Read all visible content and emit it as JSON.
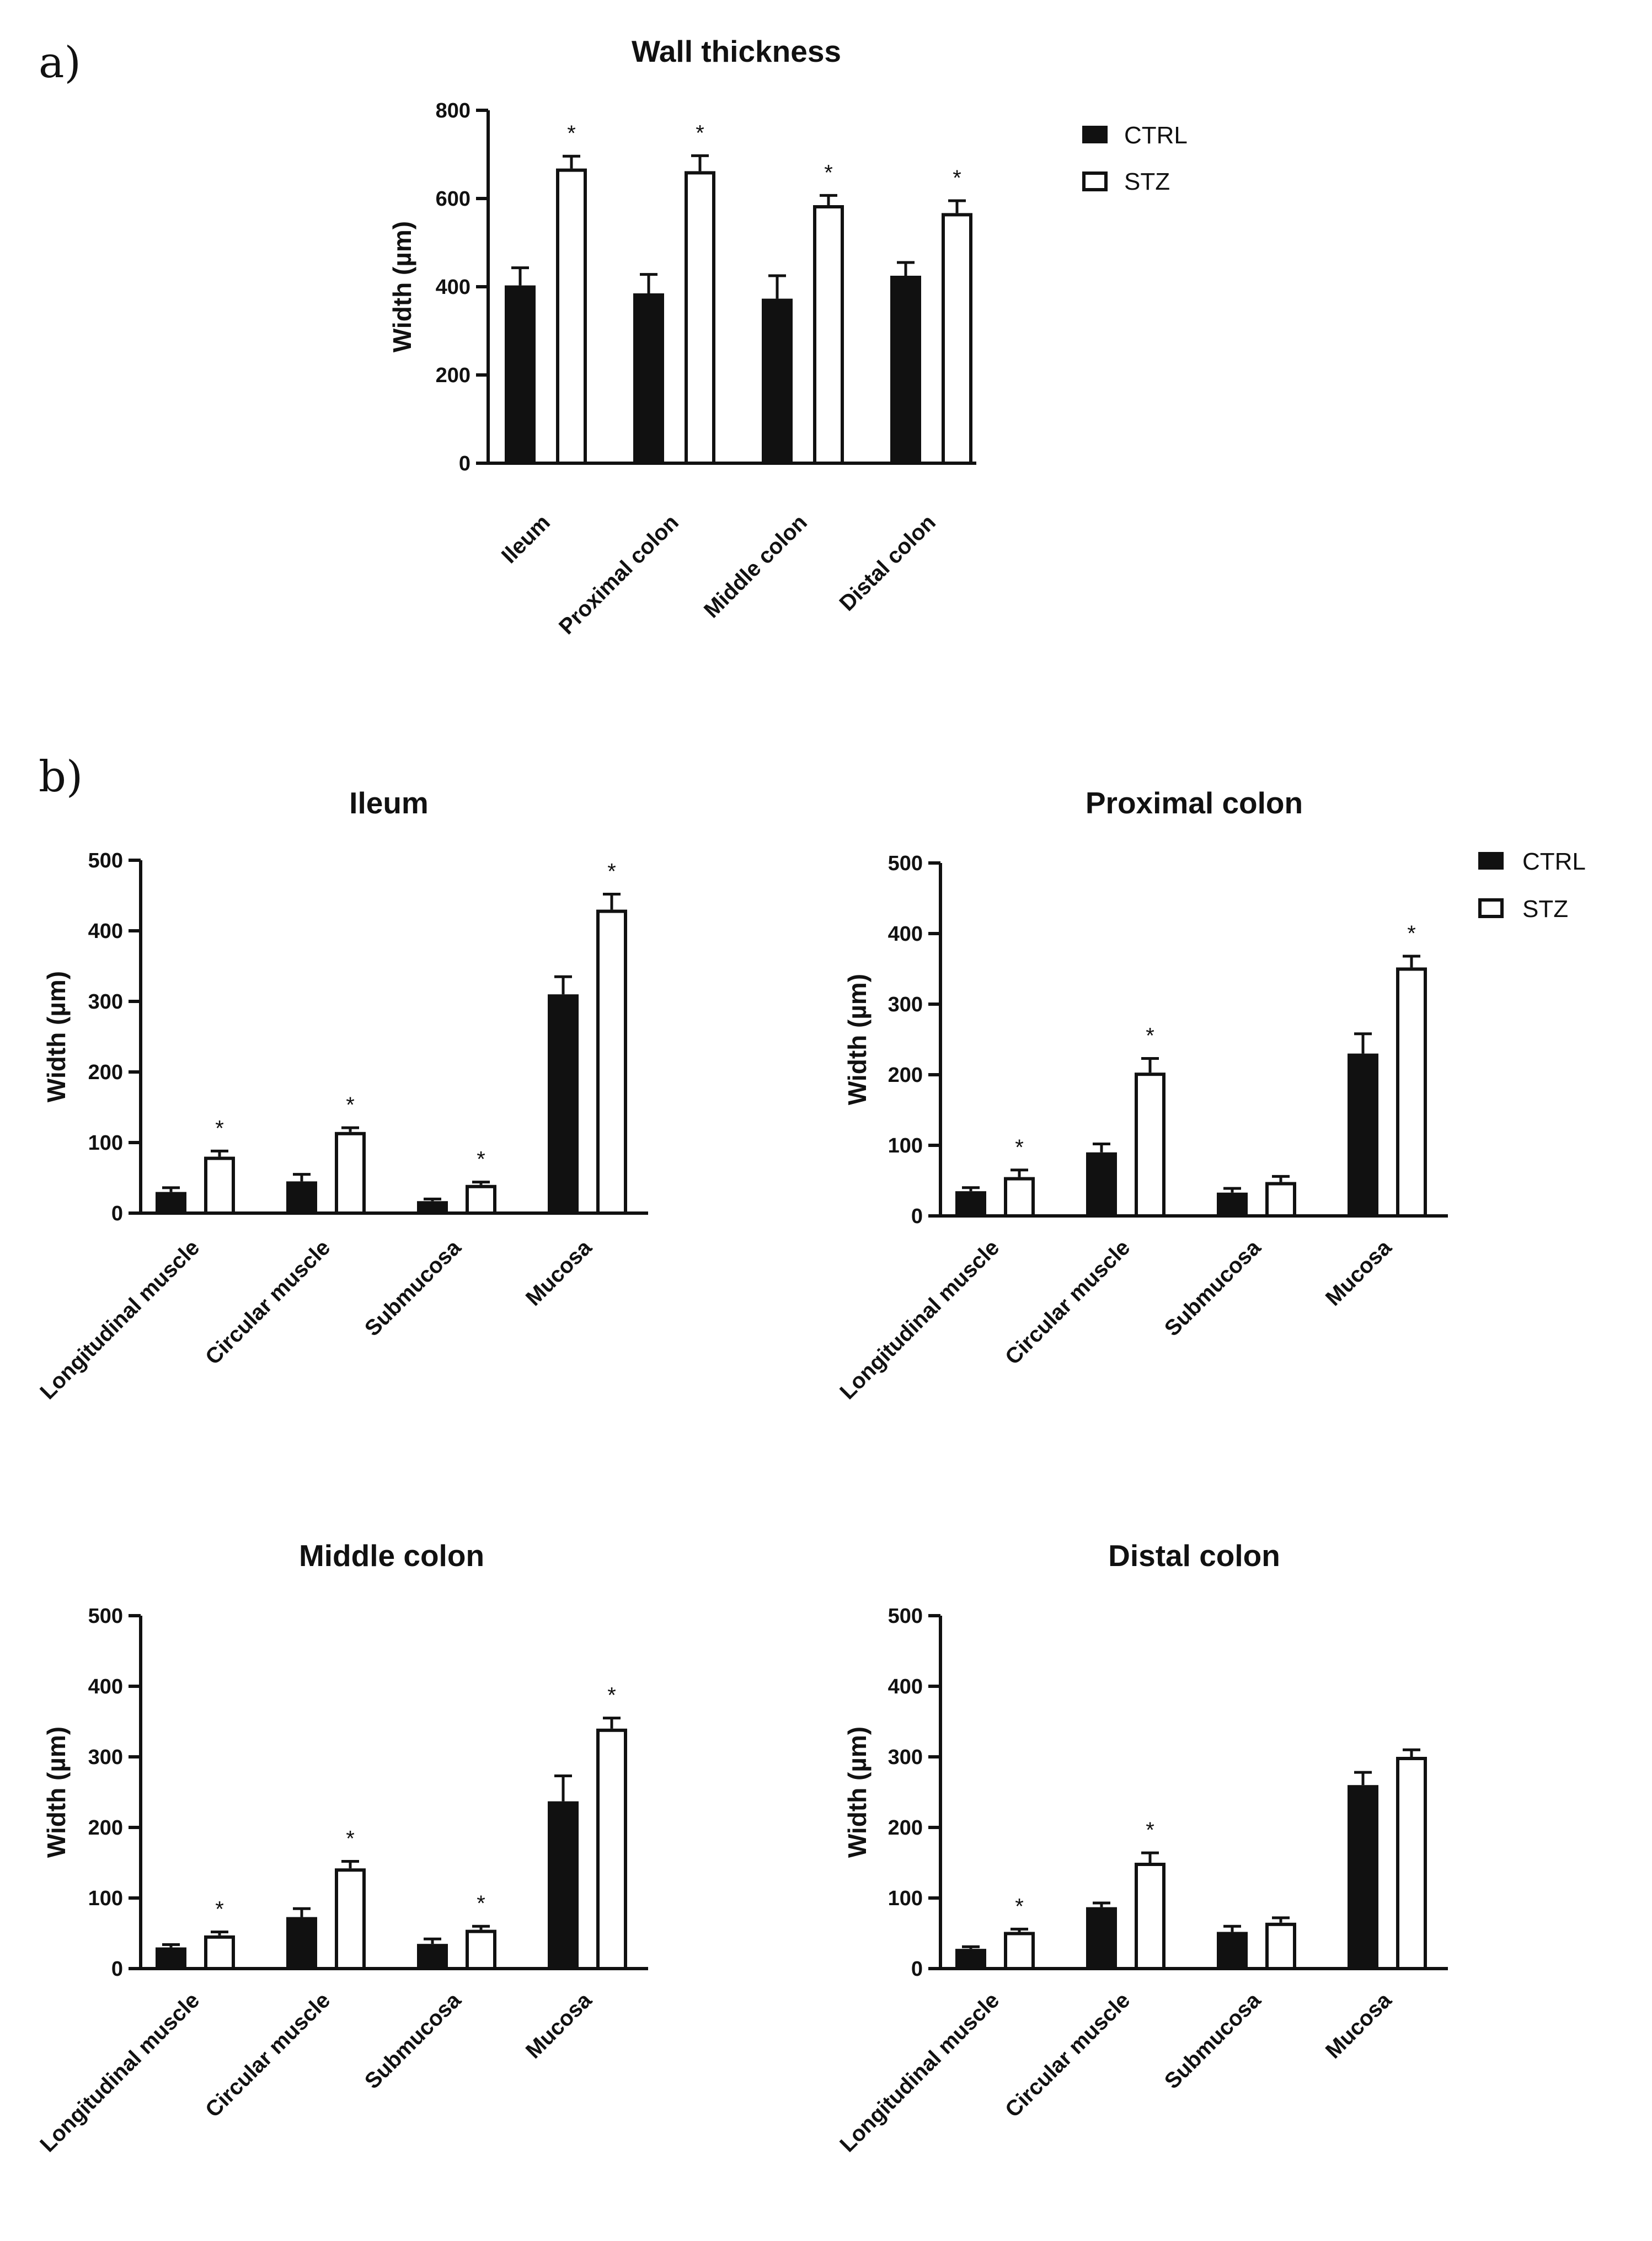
{
  "panels": {
    "a": "a)",
    "b": "b)"
  },
  "legend": {
    "ctrl": "CTRL",
    "stz": "STZ"
  },
  "colors": {
    "ctrl": "#111111",
    "stz": "#ffffff",
    "axis": "#111111"
  },
  "chart_data": [
    {
      "id": "wall",
      "type": "bar",
      "title": "Wall thickness",
      "ylabel": "Width (µm)",
      "xlabel": "",
      "ylim": [
        0,
        800
      ],
      "yticks": [
        "0",
        "200",
        "400",
        "600",
        "800"
      ],
      "categories": [
        "Ileum",
        "Proximal colon",
        "Middle colon",
        "Distal colon"
      ],
      "series": [
        {
          "name": "CTRL",
          "values": [
            403,
            385,
            373,
            425
          ],
          "errors": [
            40,
            43,
            52,
            30
          ]
        },
        {
          "name": "STZ",
          "values": [
            668,
            662,
            585,
            567
          ],
          "errors": [
            28,
            35,
            22,
            28
          ]
        }
      ],
      "significance": [
        "*",
        "*",
        "*",
        "*"
      ]
    },
    {
      "id": "ileum",
      "type": "bar",
      "title": "Ileum",
      "ylabel": "Width (µm)",
      "xlabel": "",
      "ylim": [
        0,
        500
      ],
      "yticks": [
        "0",
        "100",
        "200",
        "300",
        "400",
        "500"
      ],
      "categories": [
        "Longitudinal muscle",
        "Circular muscle",
        "Submucosa",
        "Mucosa"
      ],
      "series": [
        {
          "name": "CTRL",
          "values": [
            30,
            45,
            17,
            310
          ],
          "errors": [
            6,
            10,
            3,
            25
          ]
        },
        {
          "name": "STZ",
          "values": [
            80,
            115,
            40,
            430
          ],
          "errors": [
            8,
            6,
            4,
            22
          ]
        }
      ],
      "significance": [
        "*",
        "*",
        "*",
        "*"
      ]
    },
    {
      "id": "proximal",
      "type": "bar",
      "title": "Proximal colon",
      "ylabel": "Width (µm)",
      "xlabel": "",
      "ylim": [
        0,
        500
      ],
      "yticks": [
        "0",
        "100",
        "200",
        "300",
        "400",
        "500"
      ],
      "categories": [
        "Longitudinal muscle",
        "Circular muscle",
        "Submucosa",
        "Mucosa"
      ],
      "series": [
        {
          "name": "CTRL",
          "values": [
            35,
            90,
            33,
            230
          ],
          "errors": [
            5,
            12,
            6,
            28
          ]
        },
        {
          "name": "STZ",
          "values": [
            55,
            203,
            48,
            352
          ],
          "errors": [
            10,
            20,
            8,
            16
          ]
        }
      ],
      "significance": [
        "*",
        "*",
        "",
        "*"
      ]
    },
    {
      "id": "middle",
      "type": "bar",
      "title": "Middle colon",
      "ylabel": "Width (µm)",
      "xlabel": "",
      "ylim": [
        0,
        500
      ],
      "yticks": [
        "0",
        "100",
        "200",
        "300",
        "400",
        "500"
      ],
      "categories": [
        "Longitudinal muscle",
        "Circular muscle",
        "Submucosa",
        "Mucosa"
      ],
      "series": [
        {
          "name": "CTRL",
          "values": [
            30,
            73,
            35,
            237
          ],
          "errors": [
            4,
            12,
            7,
            36
          ]
        },
        {
          "name": "STZ",
          "values": [
            47,
            142,
            55,
            340
          ],
          "errors": [
            5,
            10,
            5,
            15
          ]
        }
      ],
      "significance": [
        "*",
        "*",
        "*",
        "*"
      ]
    },
    {
      "id": "distal",
      "type": "bar",
      "title": "Distal colon",
      "ylabel": "Width (µm)",
      "xlabel": "",
      "ylim": [
        0,
        500
      ],
      "yticks": [
        "0",
        "100",
        "200",
        "300",
        "400",
        "500"
      ],
      "categories": [
        "Longitudinal muscle",
        "Circular muscle",
        "Submucosa",
        "Mucosa"
      ],
      "series": [
        {
          "name": "CTRL",
          "values": [
            28,
            87,
            52,
            260
          ],
          "errors": [
            3,
            6,
            8,
            18
          ]
        },
        {
          "name": "STZ",
          "values": [
            52,
            150,
            65,
            300
          ],
          "errors": [
            4,
            14,
            7,
            10
          ]
        }
      ],
      "significance": [
        "*",
        "*",
        "",
        ""
      ]
    }
  ]
}
